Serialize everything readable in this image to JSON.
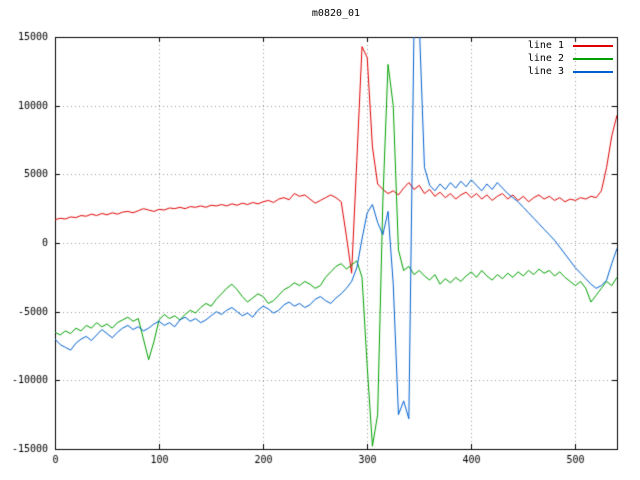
{
  "chart_data": {
    "type": "line",
    "title": "m0820_01",
    "xlabel": "",
    "ylabel": "",
    "xlim": [
      0,
      540
    ],
    "ylim": [
      -15000,
      15000
    ],
    "x_ticks": [
      0,
      100,
      200,
      300,
      400,
      500
    ],
    "y_ticks": [
      -15000,
      -10000,
      -5000,
      0,
      5000,
      10000,
      15000
    ],
    "grid": true,
    "grid_style": "dotted",
    "legend_position": "top-right",
    "background_color": "#ffffff",
    "border_color": "#000000",
    "grid_color": "#9a9a9a",
    "x_start": 0,
    "x_step": 5,
    "series": [
      {
        "name": "line 1",
        "color": "#e00000",
        "values": [
          1700,
          1800,
          1750,
          1900,
          1850,
          2000,
          1950,
          2100,
          2000,
          2150,
          2050,
          2200,
          2100,
          2250,
          2300,
          2200,
          2350,
          2500,
          2400,
          2300,
          2450,
          2400,
          2550,
          2500,
          2600,
          2500,
          2650,
          2600,
          2700,
          2600,
          2750,
          2700,
          2800,
          2700,
          2850,
          2750,
          2900,
          2800,
          2950,
          2850,
          3000,
          3100,
          2950,
          3200,
          3300,
          3150,
          3600,
          3400,
          3500,
          3200,
          2900,
          3100,
          3300,
          3500,
          3300,
          3000,
          500,
          -2200,
          6000,
          14300,
          13500,
          7000,
          4300,
          3900,
          3600,
          3800,
          3500,
          4000,
          4400,
          3900,
          4200,
          3600,
          3900,
          3400,
          3700,
          3300,
          3600,
          3200,
          3500,
          3700,
          3300,
          3600,
          3200,
          3500,
          3100,
          3400,
          3600,
          3200,
          3500,
          3100,
          3400,
          3000,
          3300,
          3500,
          3200,
          3400,
          3100,
          3300,
          3000,
          3200,
          3100,
          3300,
          3200,
          3400,
          3300,
          3800,
          5500,
          7800,
          9300
        ]
      },
      {
        "name": "line 2",
        "color": "#00a000",
        "values": [
          -6500,
          -6700,
          -6400,
          -6600,
          -6200,
          -6400,
          -6000,
          -6200,
          -5800,
          -6100,
          -5900,
          -6200,
          -5800,
          -5600,
          -5400,
          -5700,
          -5500,
          -7000,
          -8500,
          -7200,
          -5600,
          -5200,
          -5500,
          -5300,
          -5600,
          -5200,
          -4900,
          -5100,
          -4700,
          -4400,
          -4600,
          -4100,
          -3700,
          -3300,
          -3000,
          -3400,
          -3900,
          -4300,
          -4000,
          -3700,
          -3900,
          -4400,
          -4200,
          -3800,
          -3400,
          -3200,
          -2900,
          -3100,
          -2800,
          -3000,
          -3300,
          -3100,
          -2500,
          -2100,
          -1700,
          -1500,
          -1900,
          -1600,
          -1300,
          -2500,
          -9000,
          -14800,
          -12500,
          3000,
          13000,
          10000,
          -500,
          -2000,
          -1700,
          -2300,
          -2000,
          -2400,
          -2700,
          -2300,
          -3000,
          -2600,
          -2900,
          -2500,
          -2800,
          -2400,
          -2100,
          -2500,
          -2000,
          -2400,
          -2700,
          -2300,
          -2600,
          -2200,
          -2500,
          -2100,
          -2400,
          -2000,
          -2300,
          -1900,
          -2200,
          -2000,
          -2400,
          -2100,
          -2500,
          -2800,
          -3100,
          -2800,
          -3300,
          -4300,
          -3800,
          -3300,
          -2800,
          -3100,
          -2500
        ]
      },
      {
        "name": "line 3",
        "color": "#0060d0",
        "values": [
          -7000,
          -7400,
          -7600,
          -7800,
          -7300,
          -7000,
          -6800,
          -7100,
          -6700,
          -6300,
          -6600,
          -6900,
          -6500,
          -6200,
          -6000,
          -6300,
          -6100,
          -6400,
          -6200,
          -5900,
          -5700,
          -6000,
          -5800,
          -6100,
          -5600,
          -5400,
          -5700,
          -5500,
          -5800,
          -5600,
          -5300,
          -5000,
          -5200,
          -4900,
          -4700,
          -5000,
          -5300,
          -5100,
          -5400,
          -4900,
          -4600,
          -4800,
          -5100,
          -4900,
          -4500,
          -4300,
          -4600,
          -4400,
          -4700,
          -4500,
          -4100,
          -3900,
          -4200,
          -4400,
          -4000,
          -3700,
          -3300,
          -2800,
          -1800,
          300,
          2200,
          2800,
          1500,
          600,
          2300,
          -3000,
          -12500,
          -11500,
          -12800,
          16000,
          16000,
          5500,
          4200,
          3800,
          4300,
          3900,
          4400,
          4000,
          4500,
          4100,
          4600,
          4200,
          3800,
          4300,
          3900,
          4400,
          4000,
          3600,
          3300,
          3000,
          2600,
          2200,
          1800,
          1400,
          1000,
          600,
          200,
          -300,
          -800,
          -1300,
          -1800,
          -2200,
          -2600,
          -3000,
          -3300,
          -3100,
          -2700,
          -1500,
          -400
        ]
      }
    ]
  }
}
